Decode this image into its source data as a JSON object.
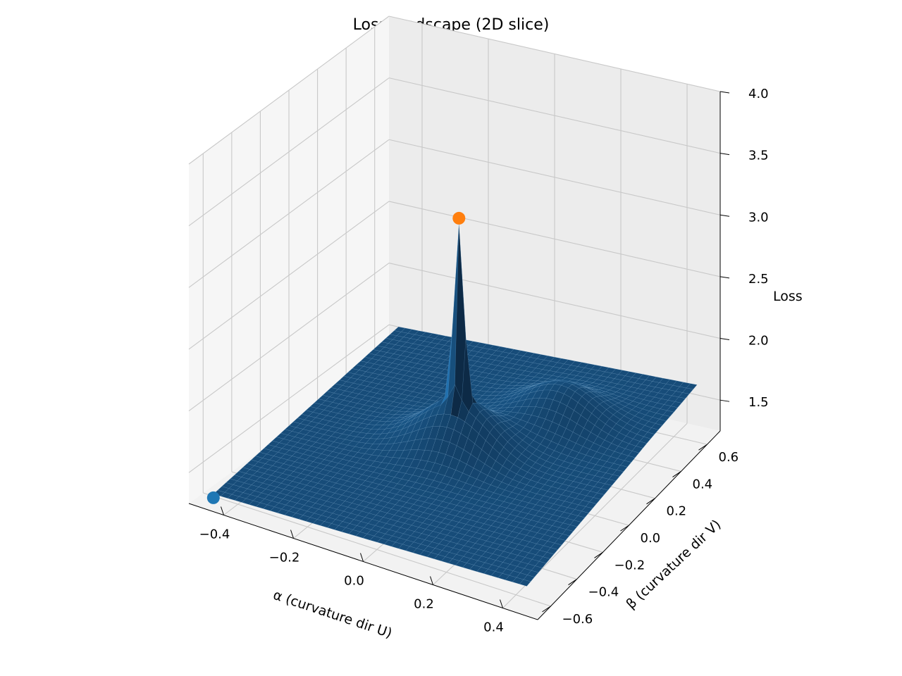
{
  "chart_data": {
    "type": "surface3d",
    "title": "Loss landscape (2D slice)",
    "xlabel": "α (curvature dir U)",
    "ylabel": "β (curvature dir V)",
    "zlabel": "Loss",
    "x_ticks": [
      "−0.4",
      "−0.2",
      "0.0",
      "0.2",
      "0.4"
    ],
    "x_tick_values": [
      -0.4,
      -0.2,
      0.0,
      0.2,
      0.4
    ],
    "y_ticks": [
      "−0.6",
      "−0.4",
      "−0.2",
      "0.0",
      "0.2",
      "0.4",
      "0.6"
    ],
    "y_tick_values": [
      -0.6,
      -0.4,
      -0.2,
      0.0,
      0.2,
      0.4,
      0.6
    ],
    "z_ticks": [
      "1.5",
      "2.0",
      "2.5",
      "3.0",
      "3.5",
      "4.0"
    ],
    "z_tick_values": [
      1.5,
      2.0,
      2.5,
      3.0,
      3.5,
      4.0
    ],
    "xlim": [
      -0.5,
      0.5
    ],
    "ylim": [
      -0.7,
      0.7
    ],
    "zlim": [
      1.25,
      4.0
    ],
    "grid": true,
    "surface": {
      "color": "#1f77b4",
      "alpha_range": [
        -0.45,
        0.45
      ],
      "beta_range": [
        -0.65,
        0.65
      ],
      "base_loss": 1.33,
      "peak": {
        "alpha": 0.0,
        "beta": 0.0,
        "loss": 3.35
      }
    },
    "markers": [
      {
        "name": "start",
        "alpha": -0.45,
        "beta": -0.65,
        "loss": 1.3,
        "color": "#1f77b4"
      },
      {
        "name": "peak",
        "alpha": 0.0,
        "beta": 0.0,
        "loss": 3.35,
        "color": "#ff7f0e"
      }
    ]
  }
}
